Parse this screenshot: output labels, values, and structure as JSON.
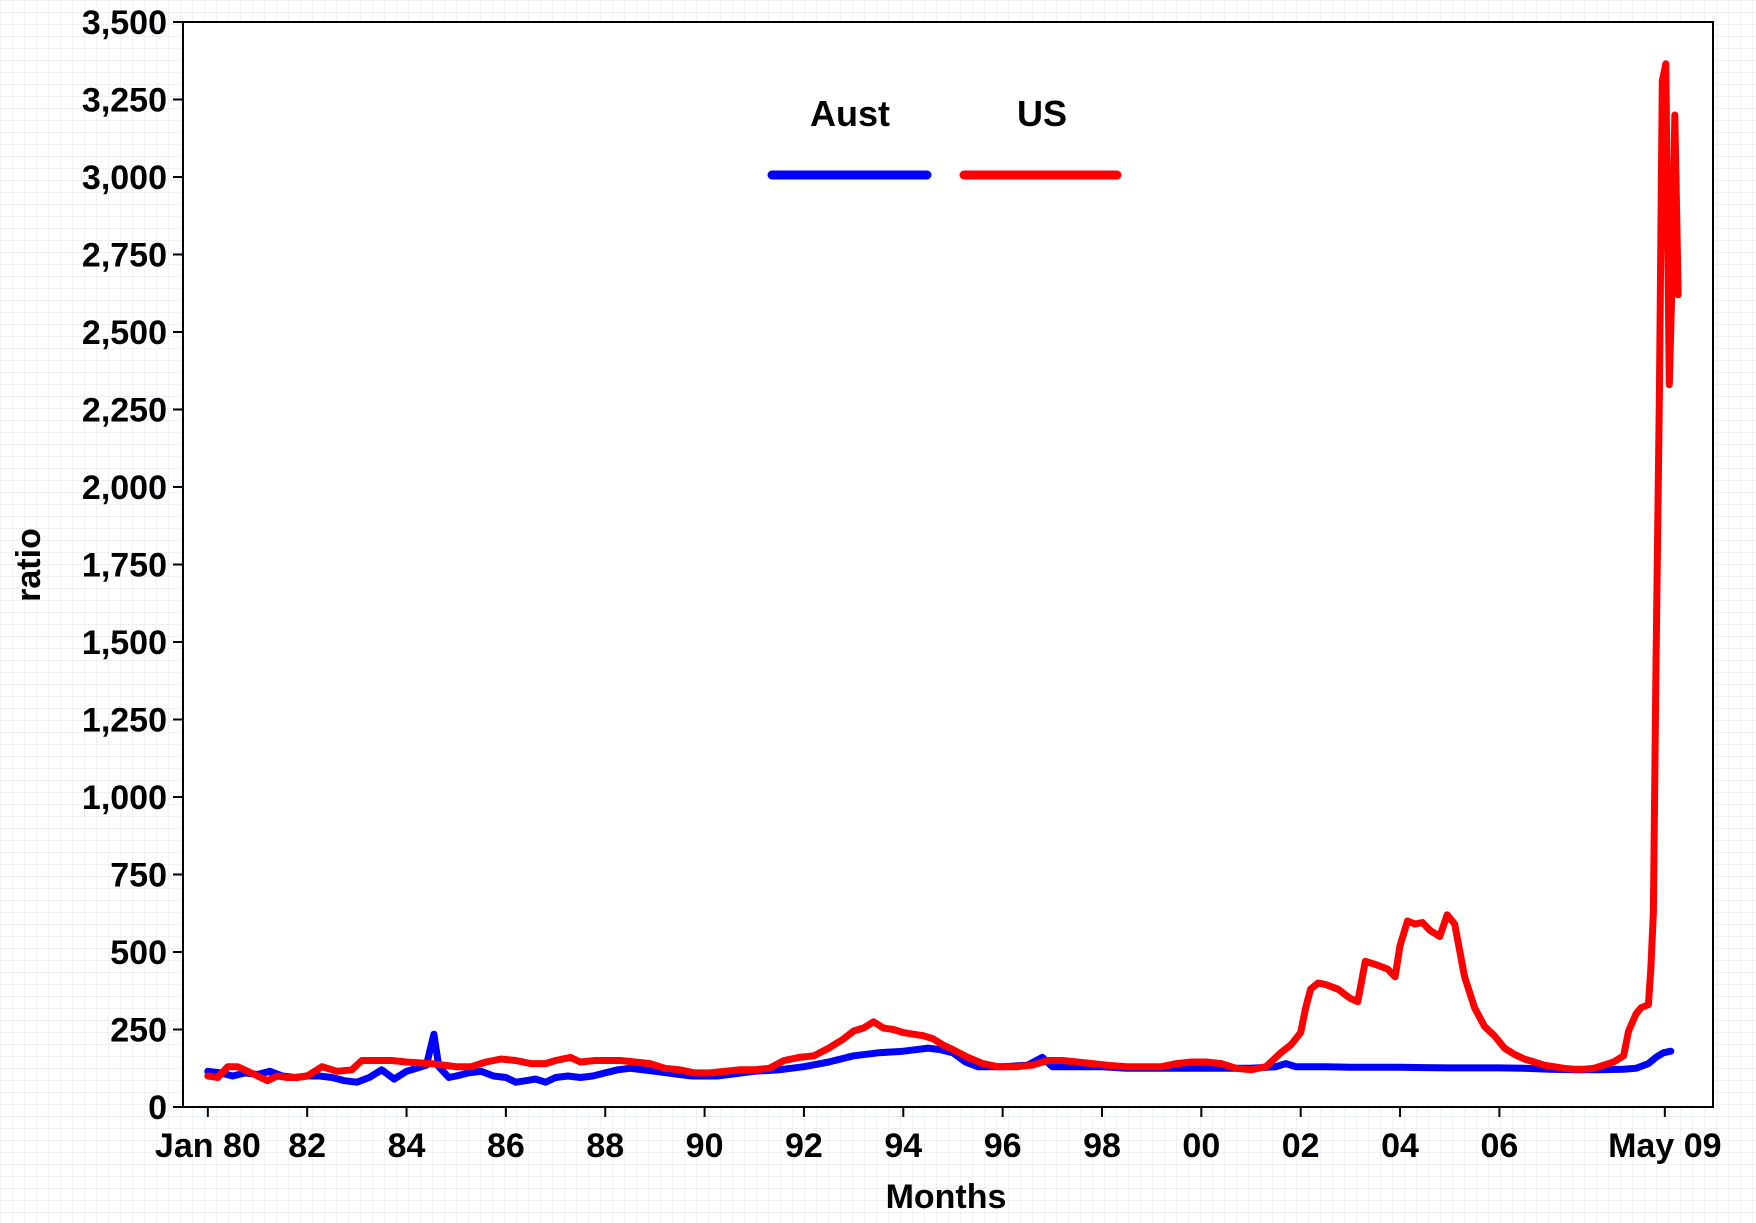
{
  "chart_data": {
    "type": "line",
    "title": "",
    "xlabel": "Months",
    "ylabel": "ratio",
    "ylim": [
      0,
      3500
    ],
    "yticks": [
      0,
      250,
      500,
      750,
      1000,
      1250,
      1500,
      1750,
      2000,
      2250,
      2500,
      2750,
      3000,
      3250,
      3500
    ],
    "ytick_labels": [
      "0",
      "250",
      "500",
      "750",
      "1,000",
      "1,250",
      "1,500",
      "1,750",
      "2,000",
      "2,250",
      "2,500",
      "2,750",
      "3,000",
      "3,250",
      "3,500"
    ],
    "xlim": [
      1979.5,
      2010.3
    ],
    "xticks": [
      1980,
      1982,
      1984,
      1986,
      1988,
      1990,
      1992,
      1994,
      1996,
      1998,
      2000,
      2002,
      2004,
      2006,
      2009.33
    ],
    "xtick_labels": [
      "Jan 80",
      "82",
      "84",
      "86",
      "88",
      "90",
      "92",
      "94",
      "96",
      "98",
      "00",
      "02",
      "04",
      "06",
      "May 09"
    ],
    "grid": true,
    "legend_position": "top-center",
    "background_color": "#ffffff",
    "grid_color": "#dce4ee",
    "series": [
      {
        "name": "Aust",
        "color": "#0000ff",
        "points": [
          [
            1980.0,
            115
          ],
          [
            1980.25,
            110
          ],
          [
            1980.5,
            100
          ],
          [
            1980.75,
            110
          ],
          [
            1981.0,
            105
          ],
          [
            1981.25,
            115
          ],
          [
            1981.5,
            100
          ],
          [
            1981.75,
            95
          ],
          [
            1982.0,
            100
          ],
          [
            1982.25,
            100
          ],
          [
            1982.5,
            95
          ],
          [
            1982.75,
            85
          ],
          [
            1983.0,
            80
          ],
          [
            1983.25,
            95
          ],
          [
            1983.5,
            120
          ],
          [
            1983.75,
            90
          ],
          [
            1984.0,
            115
          ],
          [
            1984.2,
            125
          ],
          [
            1984.4,
            135
          ],
          [
            1984.55,
            235
          ],
          [
            1984.65,
            130
          ],
          [
            1984.85,
            95
          ],
          [
            1985.0,
            100
          ],
          [
            1985.25,
            110
          ],
          [
            1985.5,
            115
          ],
          [
            1985.75,
            100
          ],
          [
            1986.0,
            95
          ],
          [
            1986.2,
            80
          ],
          [
            1986.4,
            85
          ],
          [
            1986.6,
            90
          ],
          [
            1986.8,
            80
          ],
          [
            1987.0,
            95
          ],
          [
            1987.25,
            100
          ],
          [
            1987.5,
            95
          ],
          [
            1987.75,
            100
          ],
          [
            1988.0,
            110
          ],
          [
            1988.25,
            120
          ],
          [
            1988.5,
            125
          ],
          [
            1988.75,
            120
          ],
          [
            1989.0,
            115
          ],
          [
            1989.25,
            110
          ],
          [
            1989.5,
            105
          ],
          [
            1989.75,
            100
          ],
          [
            1990.0,
            100
          ],
          [
            1990.25,
            100
          ],
          [
            1990.5,
            105
          ],
          [
            1990.75,
            110
          ],
          [
            1991.0,
            115
          ],
          [
            1991.5,
            120
          ],
          [
            1992.0,
            130
          ],
          [
            1992.5,
            145
          ],
          [
            1993.0,
            165
          ],
          [
            1993.5,
            175
          ],
          [
            1994.0,
            180
          ],
          [
            1994.25,
            185
          ],
          [
            1994.5,
            190
          ],
          [
            1994.75,
            185
          ],
          [
            1995.0,
            175
          ],
          [
            1995.25,
            145
          ],
          [
            1995.5,
            130
          ],
          [
            1996.0,
            130
          ],
          [
            1996.5,
            135
          ],
          [
            1996.8,
            160
          ],
          [
            1997.0,
            130
          ],
          [
            1997.5,
            130
          ],
          [
            1998.0,
            130
          ],
          [
            1998.5,
            125
          ],
          [
            1999.0,
            125
          ],
          [
            1999.5,
            125
          ],
          [
            2000.0,
            125
          ],
          [
            2000.5,
            125
          ],
          [
            2001.0,
            125
          ],
          [
            2001.5,
            130
          ],
          [
            2001.7,
            140
          ],
          [
            2001.9,
            130
          ],
          [
            2002.5,
            130
          ],
          [
            2003.0,
            128
          ],
          [
            2003.5,
            128
          ],
          [
            2004.0,
            128
          ],
          [
            2004.5,
            127
          ],
          [
            2005.0,
            126
          ],
          [
            2005.5,
            126
          ],
          [
            2006.0,
            126
          ],
          [
            2006.5,
            125
          ],
          [
            2007.0,
            122
          ],
          [
            2007.5,
            120
          ],
          [
            2008.0,
            120
          ],
          [
            2008.5,
            122
          ],
          [
            2008.75,
            125
          ],
          [
            2009.0,
            140
          ],
          [
            2009.15,
            160
          ],
          [
            2009.3,
            175
          ],
          [
            2009.45,
            180
          ]
        ]
      },
      {
        "name": "US",
        "color": "#ff0000",
        "points": [
          [
            1980.0,
            100
          ],
          [
            1980.2,
            95
          ],
          [
            1980.4,
            130
          ],
          [
            1980.6,
            130
          ],
          [
            1980.8,
            115
          ],
          [
            1981.0,
            100
          ],
          [
            1981.2,
            85
          ],
          [
            1981.4,
            100
          ],
          [
            1981.6,
            95
          ],
          [
            1981.8,
            95
          ],
          [
            1982.0,
            100
          ],
          [
            1982.3,
            130
          ],
          [
            1982.6,
            115
          ],
          [
            1982.9,
            120
          ],
          [
            1983.1,
            150
          ],
          [
            1983.4,
            150
          ],
          [
            1983.7,
            150
          ],
          [
            1984.0,
            145
          ],
          [
            1984.5,
            140
          ],
          [
            1985.0,
            130
          ],
          [
            1985.3,
            130
          ],
          [
            1985.6,
            145
          ],
          [
            1985.9,
            155
          ],
          [
            1986.2,
            150
          ],
          [
            1986.5,
            140
          ],
          [
            1986.8,
            140
          ],
          [
            1987.0,
            150
          ],
          [
            1987.3,
            160
          ],
          [
            1987.5,
            145
          ],
          [
            1987.8,
            150
          ],
          [
            1988.0,
            150
          ],
          [
            1988.3,
            150
          ],
          [
            1988.6,
            145
          ],
          [
            1988.9,
            140
          ],
          [
            1989.2,
            125
          ],
          [
            1989.5,
            120
          ],
          [
            1989.8,
            110
          ],
          [
            1990.1,
            110
          ],
          [
            1990.4,
            115
          ],
          [
            1990.7,
            120
          ],
          [
            1991.0,
            120
          ],
          [
            1991.3,
            125
          ],
          [
            1991.6,
            150
          ],
          [
            1991.9,
            160
          ],
          [
            1992.2,
            165
          ],
          [
            1992.5,
            190
          ],
          [
            1992.8,
            220
          ],
          [
            1993.0,
            245
          ],
          [
            1993.2,
            255
          ],
          [
            1993.4,
            275
          ],
          [
            1993.6,
            255
          ],
          [
            1993.8,
            250
          ],
          [
            1994.0,
            240
          ],
          [
            1994.2,
            235
          ],
          [
            1994.4,
            230
          ],
          [
            1994.6,
            220
          ],
          [
            1994.8,
            200
          ],
          [
            1995.0,
            185
          ],
          [
            1995.3,
            160
          ],
          [
            1995.6,
            140
          ],
          [
            1995.9,
            130
          ],
          [
            1996.3,
            130
          ],
          [
            1996.6,
            135
          ],
          [
            1996.9,
            150
          ],
          [
            1997.2,
            150
          ],
          [
            1997.5,
            145
          ],
          [
            1997.8,
            140
          ],
          [
            1998.1,
            135
          ],
          [
            1998.5,
            130
          ],
          [
            1998.9,
            130
          ],
          [
            1999.2,
            130
          ],
          [
            1999.5,
            140
          ],
          [
            1999.8,
            145
          ],
          [
            2000.1,
            145
          ],
          [
            2000.4,
            140
          ],
          [
            2000.7,
            125
          ],
          [
            2001.0,
            120
          ],
          [
            2001.3,
            130
          ],
          [
            2001.6,
            175
          ],
          [
            2001.8,
            200
          ],
          [
            2002.0,
            240
          ],
          [
            2002.1,
            320
          ],
          [
            2002.2,
            380
          ],
          [
            2002.35,
            400
          ],
          [
            2002.5,
            395
          ],
          [
            2002.75,
            380
          ],
          [
            2003.0,
            350
          ],
          [
            2003.15,
            340
          ],
          [
            2003.3,
            470
          ],
          [
            2003.5,
            460
          ],
          [
            2003.75,
            445
          ],
          [
            2003.9,
            420
          ],
          [
            2004.0,
            520
          ],
          [
            2004.15,
            600
          ],
          [
            2004.3,
            590
          ],
          [
            2004.45,
            595
          ],
          [
            2004.6,
            570
          ],
          [
            2004.8,
            550
          ],
          [
            2004.95,
            620
          ],
          [
            2005.1,
            590
          ],
          [
            2005.3,
            420
          ],
          [
            2005.5,
            320
          ],
          [
            2005.7,
            260
          ],
          [
            2005.9,
            230
          ],
          [
            2006.1,
            190
          ],
          [
            2006.3,
            170
          ],
          [
            2006.5,
            155
          ],
          [
            2006.7,
            145
          ],
          [
            2006.9,
            135
          ],
          [
            2007.1,
            130
          ],
          [
            2007.3,
            125
          ],
          [
            2007.5,
            122
          ],
          [
            2007.7,
            122
          ],
          [
            2007.9,
            125
          ],
          [
            2008.1,
            135
          ],
          [
            2008.3,
            145
          ],
          [
            2008.5,
            165
          ],
          [
            2008.6,
            245
          ],
          [
            2008.75,
            300
          ],
          [
            2008.85,
            320
          ],
          [
            2009.0,
            330
          ],
          [
            2009.05,
            450
          ],
          [
            2009.1,
            630
          ],
          [
            2009.15,
            1400
          ],
          [
            2009.22,
            2300
          ],
          [
            2009.28,
            3310
          ],
          [
            2009.35,
            3365
          ],
          [
            2009.42,
            2330
          ],
          [
            2009.48,
            2700
          ],
          [
            2009.53,
            3200
          ],
          [
            2009.6,
            2620
          ]
        ]
      }
    ]
  }
}
